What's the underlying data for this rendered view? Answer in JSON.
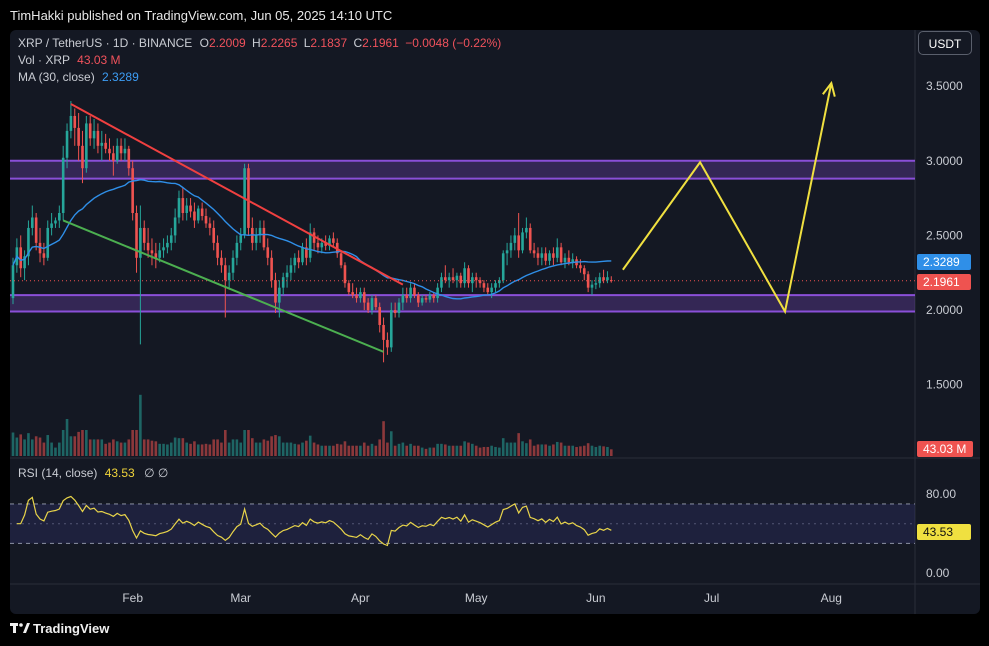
{
  "header": {
    "publisher": "TimHakki published on TradingView.com, Jun 05, 2025 14:10 UTC"
  },
  "legend": {
    "symbol": "XRP / TetherUS · 1D · BINANCE",
    "o_label": "O",
    "o": "2.2009",
    "h_label": "H",
    "h": "2.2265",
    "l_label": "L",
    "l": "2.1837",
    "c_label": "C",
    "c": "2.1961",
    "change": "−0.0048 (−0.22%)",
    "vol_label": "Vol · XRP",
    "vol": "43.03 M",
    "ma_label": "MA (30, close)",
    "ma": "2.3289",
    "rsi_label": "RSI (14, close)",
    "rsi": "43.53",
    "rsi_extra": "∅ ∅"
  },
  "currency_button": "USDT",
  "price_tags": {
    "ma": "2.3289",
    "close": "2.1961",
    "volume": "43.03 M",
    "rsi": "43.53"
  },
  "brand": {
    "name": "TradingView",
    "icon": "tradingview-logo-icon"
  },
  "colors": {
    "up": "#26a69a",
    "down": "#ef5350",
    "ma": "#2f8fe8",
    "channel": "#8a4fd8",
    "projection": "#f0e040",
    "rsi": "#e8d44a"
  },
  "chart_data": {
    "type": "candlestick",
    "symbol": "XRP / TetherUS",
    "interval": "1D",
    "exchange": "BINANCE",
    "x_ticks": [
      "Feb",
      "Mar",
      "Apr",
      "May",
      "Jun",
      "Jul",
      "Aug"
    ],
    "y_ticks": [
      "1.5000",
      "2.0000",
      "2.5000",
      "3.0000",
      "3.5000"
    ],
    "y_range": [
      1.3,
      3.9
    ],
    "rsi_ticks": [
      "0.00",
      "80.00"
    ],
    "rsi_range": [
      0,
      100
    ],
    "rsi_bands": [
      70,
      30
    ],
    "ohlc_last": {
      "open": 2.2009,
      "high": 2.2265,
      "low": 2.1837,
      "close": 2.1961
    },
    "ma_30_last": 2.3289,
    "volume_last": "43.03 M",
    "rsi_last": 43.53,
    "zones": [
      {
        "from": 2.88,
        "to": 3.0
      },
      {
        "from": 1.99,
        "to": 2.1
      }
    ],
    "trendlines": [
      {
        "color": "red",
        "points": [
          [
            "Jan 16",
            3.38
          ],
          [
            "Apr 12",
            2.17
          ]
        ]
      },
      {
        "color": "green",
        "points": [
          [
            "Jan 14",
            2.6
          ],
          [
            "Apr 07",
            1.72
          ]
        ]
      }
    ],
    "projection_path": [
      [
        "Jun 08",
        2.27
      ],
      [
        "Jun 28",
        2.99
      ],
      [
        "Jul 20",
        1.99
      ],
      [
        "Aug 01",
        3.52
      ]
    ],
    "candles": [
      [
        "Jan 01",
        2.08,
        2.35,
        2.04,
        2.3
      ],
      [
        "Jan 02",
        2.3,
        2.48,
        2.25,
        2.42
      ],
      [
        "Jan 03",
        2.42,
        2.5,
        2.22,
        2.28
      ],
      [
        "Jan 04",
        2.28,
        2.4,
        2.2,
        2.36
      ],
      [
        "Jan 05",
        2.36,
        2.6,
        2.3,
        2.55
      ],
      [
        "Jan 06",
        2.55,
        2.7,
        2.5,
        2.62
      ],
      [
        "Jan 07",
        2.62,
        2.65,
        2.4,
        2.45
      ],
      [
        "Jan 08",
        2.45,
        2.55,
        2.32,
        2.38
      ],
      [
        "Jan 09",
        2.38,
        2.45,
        2.3,
        2.35
      ],
      [
        "Jan 10",
        2.35,
        2.6,
        2.33,
        2.55
      ],
      [
        "Jan 11",
        2.55,
        2.65,
        2.5,
        2.58
      ],
      [
        "Jan 12",
        2.58,
        2.62,
        2.55,
        2.6
      ],
      [
        "Jan 13",
        2.6,
        2.7,
        2.55,
        2.65
      ],
      [
        "Jan 14",
        2.65,
        3.1,
        2.6,
        3.02
      ],
      [
        "Jan 15",
        3.02,
        3.25,
        2.95,
        3.2
      ],
      [
        "Jan 16",
        3.2,
        3.4,
        3.15,
        3.3
      ],
      [
        "Jan 17",
        3.3,
        3.35,
        3.1,
        3.22
      ],
      [
        "Jan 18",
        3.22,
        3.32,
        3.0,
        3.1
      ],
      [
        "Jan 19",
        3.1,
        3.2,
        2.85,
        2.95
      ],
      [
        "Jan 20",
        2.95,
        3.3,
        2.92,
        3.25
      ],
      [
        "Jan 21",
        3.25,
        3.3,
        3.1,
        3.15
      ],
      [
        "Jan 22",
        3.15,
        3.28,
        3.08,
        3.2
      ],
      [
        "Jan 23",
        3.2,
        3.25,
        3.05,
        3.1
      ],
      [
        "Jan 24",
        3.1,
        3.2,
        3.0,
        3.12
      ],
      [
        "Jan 25",
        3.12,
        3.18,
        3.05,
        3.08
      ],
      [
        "Jan 26",
        3.08,
        3.15,
        3.0,
        3.05
      ],
      [
        "Jan 27",
        3.05,
        3.1,
        2.9,
        3.0
      ],
      [
        "Jan 28",
        3.0,
        3.15,
        2.98,
        3.1
      ],
      [
        "Jan 29",
        3.1,
        3.15,
        3.0,
        3.05
      ],
      [
        "Jan 30",
        3.05,
        3.15,
        3.0,
        3.08
      ],
      [
        "Jan 31",
        3.08,
        3.1,
        2.9,
        2.95
      ],
      [
        "Feb 01",
        2.95,
        3.0,
        2.6,
        2.65
      ],
      [
        "Feb 02",
        2.65,
        2.7,
        2.25,
        2.35
      ],
      [
        "Feb 03",
        2.35,
        2.7,
        1.77,
        2.55
      ],
      [
        "Feb 04",
        2.55,
        2.6,
        2.4,
        2.45
      ],
      [
        "Feb 05",
        2.45,
        2.55,
        2.35,
        2.4
      ],
      [
        "Feb 06",
        2.4,
        2.48,
        2.3,
        2.38
      ],
      [
        "Feb 07",
        2.38,
        2.45,
        2.28,
        2.35
      ],
      [
        "Feb 08",
        2.35,
        2.45,
        2.32,
        2.4
      ],
      [
        "Feb 09",
        2.4,
        2.48,
        2.35,
        2.42
      ],
      [
        "Feb 10",
        2.42,
        2.5,
        2.38,
        2.45
      ],
      [
        "Feb 11",
        2.45,
        2.55,
        2.4,
        2.5
      ],
      [
        "Feb 12",
        2.5,
        2.68,
        2.45,
        2.62
      ],
      [
        "Feb 13",
        2.62,
        2.8,
        2.58,
        2.75
      ],
      [
        "Feb 14",
        2.75,
        2.82,
        2.6,
        2.65
      ],
      [
        "Feb 15",
        2.65,
        2.75,
        2.6,
        2.7
      ],
      [
        "Feb 16",
        2.7,
        2.75,
        2.62,
        2.66
      ],
      [
        "Feb 17",
        2.66,
        2.72,
        2.55,
        2.6
      ],
      [
        "Feb 18",
        2.6,
        2.7,
        2.58,
        2.68
      ],
      [
        "Feb 19",
        2.68,
        2.72,
        2.6,
        2.63
      ],
      [
        "Feb 20",
        2.63,
        2.68,
        2.55,
        2.58
      ],
      [
        "Feb 21",
        2.58,
        2.62,
        2.5,
        2.55
      ],
      [
        "Feb 22",
        2.55,
        2.6,
        2.4,
        2.45
      ],
      [
        "Feb 23",
        2.45,
        2.5,
        2.3,
        2.35
      ],
      [
        "Feb 24",
        2.35,
        2.4,
        2.25,
        2.3
      ],
      [
        "Feb 25",
        2.3,
        2.35,
        1.95,
        2.2
      ],
      [
        "Feb 26",
        2.2,
        2.3,
        2.15,
        2.25
      ],
      [
        "Feb 27",
        2.25,
        2.4,
        2.2,
        2.35
      ],
      [
        "Feb 28",
        2.35,
        2.5,
        2.3,
        2.45
      ],
      [
        "Mar 01",
        2.45,
        2.55,
        2.4,
        2.5
      ],
      [
        "Mar 02",
        2.5,
        2.98,
        2.48,
        2.95
      ],
      [
        "Mar 03",
        2.95,
        2.98,
        2.5,
        2.55
      ],
      [
        "Mar 04",
        2.55,
        2.62,
        2.4,
        2.45
      ],
      [
        "Mar 05",
        2.45,
        2.55,
        2.4,
        2.5
      ],
      [
        "Mar 06",
        2.5,
        2.6,
        2.45,
        2.55
      ],
      [
        "Mar 07",
        2.55,
        2.6,
        2.4,
        2.42
      ],
      [
        "Mar 08",
        2.42,
        2.48,
        2.3,
        2.35
      ],
      [
        "Mar 09",
        2.35,
        2.4,
        2.15,
        2.2
      ],
      [
        "Mar 10",
        2.2,
        2.25,
        1.98,
        2.05
      ],
      [
        "Mar 11",
        2.05,
        2.2,
        1.95,
        2.15
      ],
      [
        "Mar 12",
        2.15,
        2.25,
        2.1,
        2.22
      ],
      [
        "Mar 13",
        2.22,
        2.3,
        2.15,
        2.25
      ],
      [
        "Mar 14",
        2.25,
        2.35,
        2.2,
        2.3
      ],
      [
        "Mar 15",
        2.3,
        2.38,
        2.25,
        2.35
      ],
      [
        "Mar 16",
        2.35,
        2.4,
        2.28,
        2.32
      ],
      [
        "Mar 17",
        2.32,
        2.45,
        2.3,
        2.42
      ],
      [
        "Mar 18",
        2.42,
        2.48,
        2.3,
        2.35
      ],
      [
        "Mar 19",
        2.35,
        2.58,
        2.32,
        2.52
      ],
      [
        "Mar 20",
        2.52,
        2.55,
        2.4,
        2.45
      ],
      [
        "Mar 21",
        2.45,
        2.5,
        2.38,
        2.42
      ],
      [
        "Mar 22",
        2.42,
        2.48,
        2.38,
        2.45
      ],
      [
        "Mar 23",
        2.45,
        2.5,
        2.4,
        2.43
      ],
      [
        "Mar 24",
        2.43,
        2.5,
        2.4,
        2.48
      ],
      [
        "Mar 25",
        2.48,
        2.52,
        2.42,
        2.45
      ],
      [
        "Mar 26",
        2.45,
        2.48,
        2.35,
        2.38
      ],
      [
        "Mar 27",
        2.38,
        2.4,
        2.28,
        2.3
      ],
      [
        "Mar 28",
        2.3,
        2.32,
        2.15,
        2.18
      ],
      [
        "Mar 29",
        2.18,
        2.2,
        2.1,
        2.12
      ],
      [
        "Mar 30",
        2.12,
        2.18,
        2.08,
        2.1
      ],
      [
        "Mar 31",
        2.1,
        2.15,
        2.05,
        2.08
      ],
      [
        "Apr 01",
        2.08,
        2.15,
        2.05,
        2.12
      ],
      [
        "Apr 02",
        2.12,
        2.15,
        2.0,
        2.05
      ],
      [
        "Apr 03",
        2.05,
        2.08,
        1.98,
        2.0
      ],
      [
        "Apr 04",
        2.0,
        2.1,
        1.97,
        2.08
      ],
      [
        "Apr 05",
        2.08,
        2.1,
        2.0,
        2.02
      ],
      [
        "Apr 06",
        2.02,
        2.05,
        1.85,
        1.9
      ],
      [
        "Apr 07",
        1.9,
        1.95,
        1.65,
        1.8
      ],
      [
        "Apr 08",
        1.8,
        1.85,
        1.7,
        1.75
      ],
      [
        "Apr 09",
        1.75,
        2.05,
        1.72,
        2.0
      ],
      [
        "Apr 10",
        2.0,
        2.05,
        1.95,
        1.98
      ],
      [
        "Apr 11",
        1.98,
        2.08,
        1.95,
        2.05
      ],
      [
        "Apr 12",
        2.05,
        2.15,
        2.0,
        2.1
      ],
      [
        "Apr 13",
        2.1,
        2.15,
        2.05,
        2.08
      ],
      [
        "Apr 14",
        2.08,
        2.18,
        2.05,
        2.15
      ],
      [
        "Apr 15",
        2.15,
        2.18,
        2.08,
        2.1
      ],
      [
        "Apr 16",
        2.1,
        2.12,
        2.02,
        2.05
      ],
      [
        "Apr 17",
        2.05,
        2.1,
        2.03,
        2.08
      ],
      [
        "Apr 18",
        2.08,
        2.1,
        2.05,
        2.07
      ],
      [
        "Apr 19",
        2.07,
        2.12,
        2.05,
        2.1
      ],
      [
        "Apr 20",
        2.1,
        2.12,
        2.05,
        2.08
      ],
      [
        "Apr 21",
        2.08,
        2.18,
        2.05,
        2.15
      ],
      [
        "Apr 22",
        2.15,
        2.25,
        2.12,
        2.22
      ],
      [
        "Apr 23",
        2.22,
        2.3,
        2.18,
        2.2
      ],
      [
        "Apr 24",
        2.2,
        2.25,
        2.15,
        2.22
      ],
      [
        "Apr 25",
        2.22,
        2.28,
        2.18,
        2.2
      ],
      [
        "Apr 26",
        2.2,
        2.25,
        2.15,
        2.23
      ],
      [
        "Apr 27",
        2.23,
        2.25,
        2.15,
        2.18
      ],
      [
        "Apr 28",
        2.18,
        2.32,
        2.15,
        2.28
      ],
      [
        "Apr 29",
        2.28,
        2.3,
        2.15,
        2.18
      ],
      [
        "Apr 30",
        2.18,
        2.25,
        2.12,
        2.22
      ],
      [
        "May 01",
        2.22,
        2.25,
        2.15,
        2.2
      ],
      [
        "May 02",
        2.2,
        2.22,
        2.15,
        2.18
      ],
      [
        "May 03",
        2.18,
        2.2,
        2.12,
        2.15
      ],
      [
        "May 04",
        2.15,
        2.18,
        2.1,
        2.12
      ],
      [
        "May 05",
        2.12,
        2.18,
        2.08,
        2.15
      ],
      [
        "May 06",
        2.15,
        2.2,
        2.12,
        2.18
      ],
      [
        "May 07",
        2.18,
        2.22,
        2.15,
        2.2
      ],
      [
        "May 08",
        2.2,
        2.4,
        2.18,
        2.38
      ],
      [
        "May 09",
        2.38,
        2.45,
        2.3,
        2.4
      ],
      [
        "May 10",
        2.4,
        2.5,
        2.35,
        2.45
      ],
      [
        "May 11",
        2.45,
        2.55,
        2.4,
        2.5
      ],
      [
        "May 12",
        2.5,
        2.65,
        2.35,
        2.4
      ],
      [
        "May 13",
        2.4,
        2.55,
        2.38,
        2.52
      ],
      [
        "May 14",
        2.52,
        2.62,
        2.48,
        2.55
      ],
      [
        "May 15",
        2.55,
        2.58,
        2.38,
        2.4
      ],
      [
        "May 16",
        2.4,
        2.45,
        2.35,
        2.38
      ],
      [
        "May 17",
        2.38,
        2.42,
        2.3,
        2.35
      ],
      [
        "May 18",
        2.35,
        2.42,
        2.3,
        2.38
      ],
      [
        "May 19",
        2.38,
        2.42,
        2.3,
        2.33
      ],
      [
        "May 20",
        2.33,
        2.4,
        2.3,
        2.38
      ],
      [
        "May 21",
        2.38,
        2.42,
        2.3,
        2.35
      ],
      [
        "May 22",
        2.35,
        2.48,
        2.32,
        2.42
      ],
      [
        "May 23",
        2.42,
        2.45,
        2.3,
        2.32
      ],
      [
        "May 24",
        2.32,
        2.38,
        2.28,
        2.35
      ],
      [
        "May 25",
        2.35,
        2.4,
        2.3,
        2.32
      ],
      [
        "May 26",
        2.32,
        2.38,
        2.28,
        2.34
      ],
      [
        "May 27",
        2.34,
        2.36,
        2.28,
        2.3
      ],
      [
        "May 28",
        2.3,
        2.34,
        2.25,
        2.28
      ],
      [
        "May 29",
        2.28,
        2.3,
        2.2,
        2.24
      ],
      [
        "May 30",
        2.24,
        2.26,
        2.12,
        2.15
      ],
      [
        "May 31",
        2.15,
        2.2,
        2.1,
        2.17
      ],
      [
        "Jun 01",
        2.17,
        2.22,
        2.14,
        2.18
      ],
      [
        "Jun 02",
        2.18,
        2.25,
        2.15,
        2.22
      ],
      [
        "Jun 03",
        2.22,
        2.27,
        2.18,
        2.2
      ],
      [
        "Jun 04",
        2.2,
        2.26,
        2.18,
        2.22
      ],
      [
        "Jun 05",
        2.2009,
        2.2265,
        2.1837,
        2.1961
      ]
    ]
  }
}
